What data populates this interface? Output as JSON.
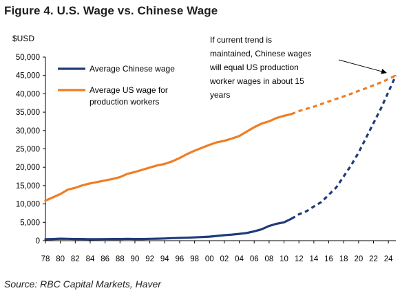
{
  "figure_title": "Figure 4.  U.S. Wage vs. Chinese Wage",
  "source": "Source: RBC Capital Markets, Haver",
  "chart_data": {
    "type": "line",
    "ylabel": "$USD",
    "ylim": [
      0,
      50000
    ],
    "yticks": [
      0,
      5000,
      10000,
      15000,
      20000,
      25000,
      30000,
      35000,
      40000,
      45000,
      50000
    ],
    "ytick_labels": [
      "0",
      "5,000",
      "10,000",
      "15,000",
      "20,000",
      "25,000",
      "30,000",
      "35,000",
      "40,000",
      "45,000",
      "50,000"
    ],
    "xlim": [
      1978,
      2025
    ],
    "xticks": [
      1978,
      1980,
      1982,
      1984,
      1986,
      1988,
      1990,
      1992,
      1994,
      1996,
      1998,
      2000,
      2002,
      2004,
      2006,
      2008,
      2010,
      2012,
      2014,
      2016,
      2018,
      2020,
      2022,
      2024
    ],
    "xtick_labels": [
      "78",
      "80",
      "82",
      "84",
      "86",
      "88",
      "90",
      "92",
      "94",
      "96",
      "98",
      "00",
      "02",
      "04",
      "06",
      "08",
      "10",
      "12",
      "14",
      "16",
      "18",
      "20",
      "22",
      "24"
    ],
    "grid": false,
    "legend_position": "top-left",
    "series": [
      {
        "name": "Average Chinese wage",
        "color": "#1f3a7a",
        "actual": {
          "x": [
            1978,
            1979,
            1980,
            1981,
            1982,
            1983,
            1984,
            1985,
            1986,
            1987,
            1988,
            1989,
            1990,
            1991,
            1992,
            1993,
            1994,
            1995,
            1996,
            1997,
            1998,
            1999,
            2000,
            2001,
            2002,
            2003,
            2004,
            2005,
            2006,
            2007,
            2008,
            2009,
            2010,
            2011
          ],
          "y": [
            400,
            450,
            550,
            500,
            450,
            450,
            400,
            420,
            430,
            450,
            450,
            500,
            450,
            450,
            500,
            550,
            600,
            700,
            750,
            800,
            900,
            1000,
            1100,
            1300,
            1500,
            1650,
            1850,
            2100,
            2550,
            3100,
            4000,
            4600,
            5000,
            6000
          ]
        },
        "projected": {
          "x": [
            2011,
            2012,
            2013,
            2014,
            2015,
            2016,
            2017,
            2018,
            2019,
            2020,
            2021,
            2022,
            2023,
            2024,
            2025
          ],
          "y": [
            6000,
            7200,
            8000,
            9300,
            10500,
            12500,
            14500,
            17500,
            20500,
            24000,
            28000,
            32000,
            36000,
            40500,
            45000
          ]
        }
      },
      {
        "name": "Average US wage for production workers",
        "color": "#ef7d24",
        "actual": {
          "x": [
            1978,
            1979,
            1980,
            1981,
            1982,
            1983,
            1984,
            1985,
            1986,
            1987,
            1988,
            1989,
            1990,
            1991,
            1992,
            1993,
            1994,
            1995,
            1996,
            1997,
            1998,
            1999,
            2000,
            2001,
            2002,
            2003,
            2004,
            2005,
            2006,
            2007,
            2008,
            2009,
            2010,
            2011
          ],
          "y": [
            10900,
            11800,
            12700,
            13900,
            14400,
            15100,
            15600,
            16000,
            16400,
            16800,
            17300,
            18200,
            18700,
            19300,
            19900,
            20500,
            20900,
            21600,
            22500,
            23600,
            24500,
            25300,
            26100,
            26800,
            27200,
            27800,
            28500,
            29700,
            30900,
            31900,
            32500,
            33400,
            34000,
            34500
          ]
        },
        "projected": {
          "x": [
            2011,
            2012,
            2013,
            2014,
            2015,
            2016,
            2017,
            2018,
            2019,
            2020,
            2021,
            2022,
            2023,
            2024,
            2025
          ],
          "y": [
            34500,
            35300,
            35900,
            36500,
            37200,
            37900,
            38600,
            39300,
            40000,
            40800,
            41500,
            42300,
            43100,
            44000,
            45000
          ]
        }
      }
    ],
    "annotation": {
      "lines": [
        "If current trend is",
        "maintained, Chinese wages",
        "will equal US production",
        "worker wages in about 15",
        "years"
      ],
      "points_to": [
        2025,
        45000
      ]
    }
  }
}
